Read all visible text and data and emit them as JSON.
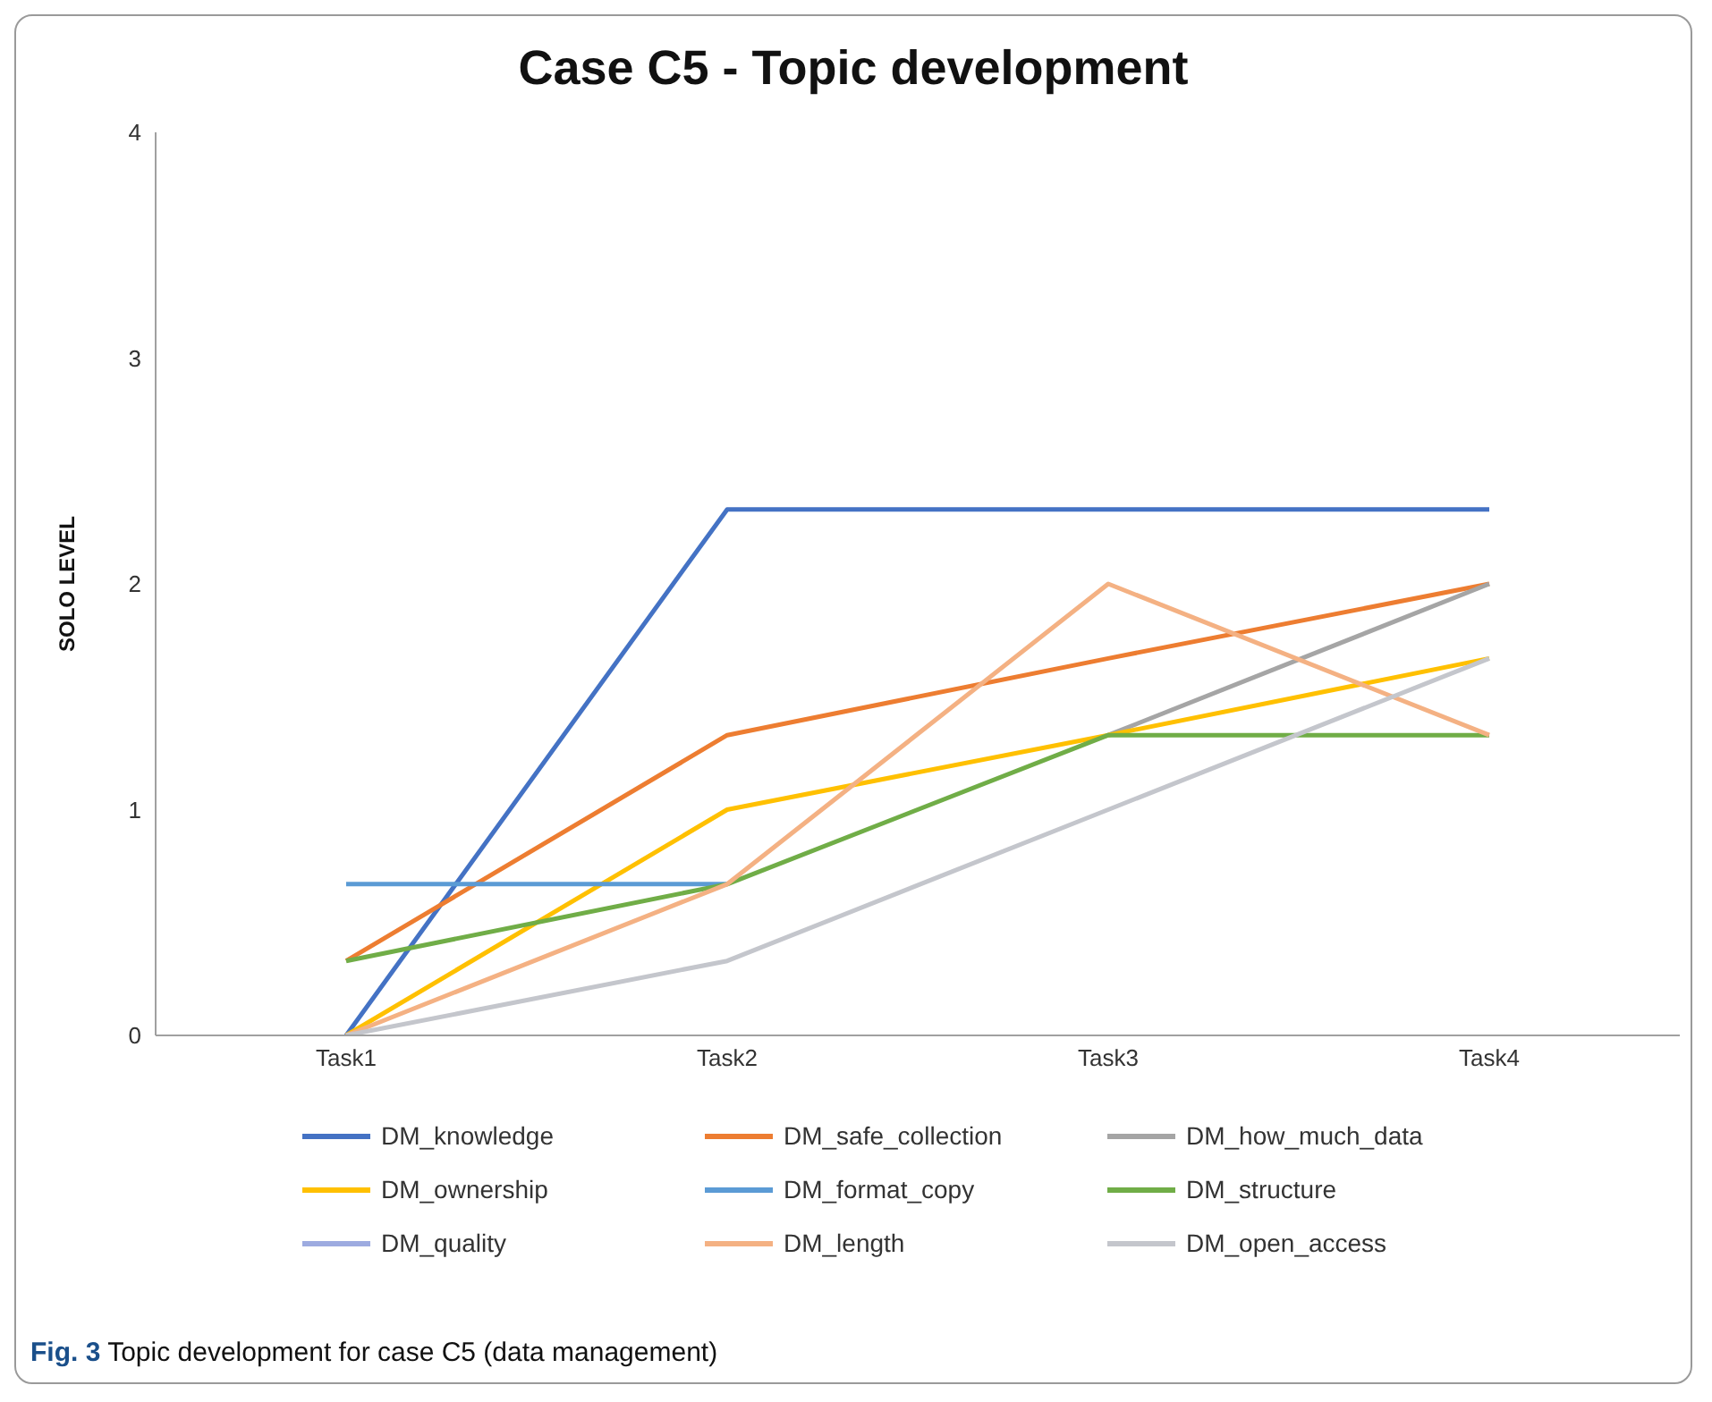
{
  "chart_data": {
    "type": "line",
    "title": "Case C5 - Topic development",
    "ylabel": "SOLO LEVEL",
    "categories": [
      "Task1",
      "Task2",
      "Task3",
      "Task4"
    ],
    "series": [
      {
        "name": "DM_knowledge",
        "color": "#4472c4",
        "values": [
          0,
          2.33,
          2.33,
          2.33
        ]
      },
      {
        "name": "DM_safe_collection",
        "color": "#ed7d31",
        "values": [
          0.33,
          1.33,
          1.67,
          2
        ]
      },
      {
        "name": "DM_how_much_data",
        "color": "#a5a5a5",
        "values": [
          null,
          null,
          1.33,
          2
        ]
      },
      {
        "name": "DM_ownership",
        "color": "#ffc000",
        "values": [
          0,
          1,
          1.33,
          1.67
        ]
      },
      {
        "name": "DM_format_copy",
        "color": "#5b9bd5",
        "values": [
          0.67,
          0.67,
          null,
          null
        ]
      },
      {
        "name": "DM_structure",
        "color": "#70ad47",
        "values": [
          0.33,
          0.67,
          1.33,
          1.33
        ]
      },
      {
        "name": "DM_quality",
        "color": "#9dabe0",
        "values": [
          null,
          null,
          null,
          null
        ]
      },
      {
        "name": "DM_length",
        "color": "#f4b183",
        "values": [
          0,
          0.67,
          2,
          1.33
        ]
      },
      {
        "name": "DM_open_access",
        "color": "#c4c6cc",
        "values": [
          0,
          0.33,
          1,
          1.67
        ]
      }
    ],
    "ylim": [
      0,
      4
    ],
    "yticks": [
      0,
      1,
      2,
      3,
      4
    ],
    "grid": false,
    "legend": "bottom",
    "marker": "none",
    "line_style": "solid",
    "annotations": [
      "Fig. 3 Topic development for case C5 (data management)"
    ]
  }
}
